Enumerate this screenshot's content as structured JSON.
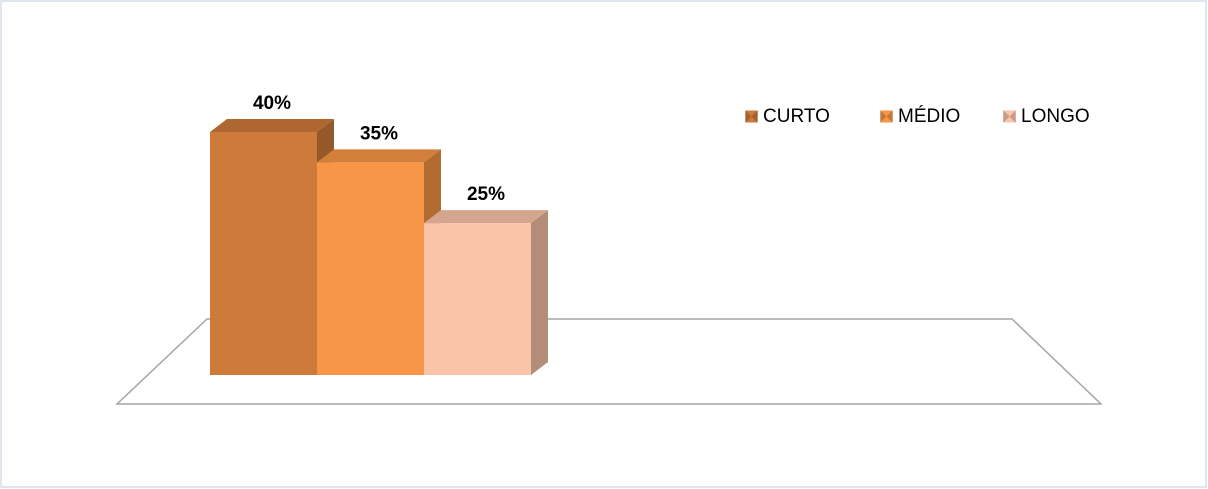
{
  "chart_data": {
    "type": "bar3d",
    "categories": [
      null
    ],
    "series": [
      {
        "name": "CURTO",
        "color": "#cd7a3a",
        "values": [
          40
        ],
        "value_labels": [
          "40%"
        ]
      },
      {
        "name": "MÉDIO",
        "color": "#f79646",
        "values": [
          35
        ],
        "value_labels": [
          "35%"
        ]
      },
      {
        "name": "LONGO",
        "color": "#fac4a8",
        "values": [
          25
        ],
        "value_labels": [
          "25%"
        ]
      }
    ],
    "legend": "top-right"
  }
}
